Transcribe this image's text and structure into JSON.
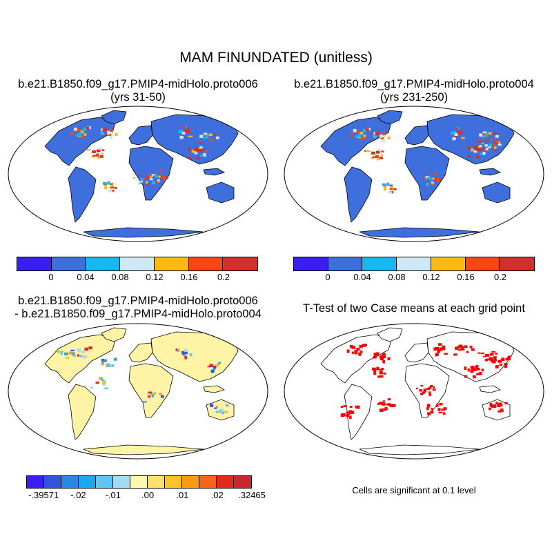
{
  "title": "MAM FINUNDATED (unitless)",
  "panels": [
    {
      "title_line1": "b.e21.B1850.f09_g17.PMIP4-midHolo.proto006",
      "title_line2": "(yrs 31-50)"
    },
    {
      "title_line1": "b.e21.B1850.f09_g17.PMIP4-midHolo.proto004",
      "title_line2": "(yrs 231-250)"
    },
    {
      "title_line1": "b.e21.B1850.f09_g17.PMIP4-midHolo.proto006",
      "title_line2": "- b.e21.B1850.f09_g17.PMIP4-midHolo.proto004"
    },
    {
      "title_line1": "T-Test of two Case means at each grid point",
      "title_line2": ""
    }
  ],
  "colorbar_abs": {
    "colors": [
      "#3a1ff0",
      "#3f6fdc",
      "#17b8f2",
      "#cde8f6",
      "#fdb914",
      "#fa4612",
      "#d2302e"
    ],
    "labels": [
      "0",
      "0.04",
      "0.08",
      "0.12",
      "0.16",
      "0.2"
    ]
  },
  "colorbar_diff": {
    "colors": [
      "#3a1ff0",
      "#3355dd",
      "#2a86e8",
      "#1aa8f0",
      "#5fc6f4",
      "#a5dbef",
      "#fff8b0",
      "#fee16a",
      "#fcc326",
      "#f99a12",
      "#f6641a",
      "#e22a1c",
      "#c8282c"
    ],
    "labels": [
      "-.39571",
      "-.02",
      "-.01",
      ".00",
      ".01",
      ".02",
      ".32465"
    ]
  },
  "colors": {
    "land_abs": "#3f6fdc",
    "land_diff": "#fff3a6",
    "significant": "#ff0000"
  },
  "significance_note": "Cells are significant at 0.1 level"
}
